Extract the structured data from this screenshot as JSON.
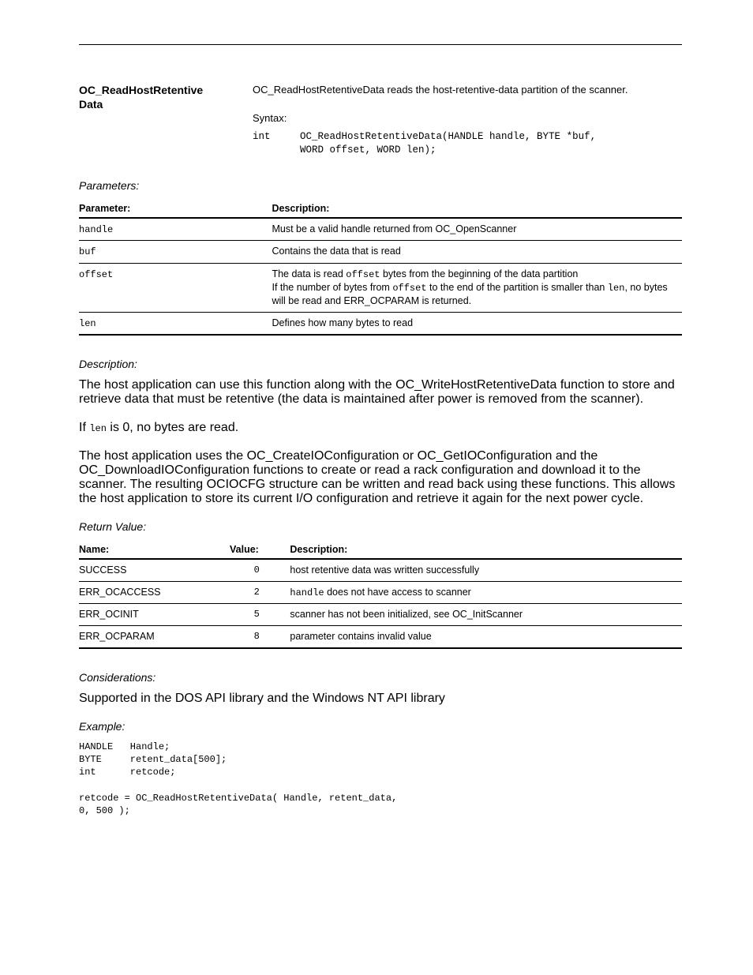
{
  "header": {
    "title": "OC_ReadHostRetentive\nData"
  },
  "intro": {
    "p1": "OC_ReadHostRetentiveData reads the host-retentive-data partition of the scanner.",
    "syntax_label": "Syntax:",
    "syntax_code": "int     OC_ReadHostRetentiveData(HANDLE handle, BYTE *buf,\n        WORD offset, WORD len);"
  },
  "parameters": {
    "heading": "Parameters:",
    "columns": {
      "param": "Parameter:",
      "desc": "Description:"
    },
    "rows": [
      {
        "param": "handle",
        "desc": "Must be a valid handle returned from OC_OpenScanner"
      },
      {
        "param": "buf",
        "desc": "Contains the data that is read"
      },
      {
        "param": "offset",
        "desc_parts": {
          "a": "The data is read ",
          "b": "offset",
          "c": " bytes from the beginning of the data partition\nIf the number of bytes from ",
          "d": "offset",
          "e": " to the end of the partition is smaller than ",
          "f": "len",
          "g": ", no bytes will be read and ERR_OCPARAM is returned."
        }
      },
      {
        "param": "len",
        "desc": "Defines how many bytes to read"
      }
    ]
  },
  "description": {
    "heading": "Description:",
    "p1": "The host application can use this function along with the OC_WriteHostRetentiveData function to store and retrieve data that must be retentive (the data is maintained after power is removed from the scanner).",
    "p2_prefix": "If ",
    "p2_code": "len",
    "p2_suffix": " is 0, no bytes are read.",
    "p3": "The host application uses the OC_CreateIOConfiguration or OC_GetIOConfiguration and the OC_DownloadIOConfiguration functions to create or read a rack configuration and download it to the scanner. The resulting OCIOCFG structure can be written and read back using these functions. This allows the host application to store its current I/O configuration and retrieve it again for the next power cycle."
  },
  "return_value": {
    "heading": "Return Value:",
    "columns": {
      "name": "Name:",
      "value": "Value:",
      "desc": "Description:"
    },
    "rows": [
      {
        "name": "SUCCESS",
        "value": "0",
        "desc": "host retentive data was written successfully"
      },
      {
        "name": "ERR_OCACCESS",
        "value": "2",
        "desc_code": "handle",
        "desc_suffix": " does not have access to scanner"
      },
      {
        "name": "ERR_OCINIT",
        "value": "5",
        "desc": "scanner has not been initialized, see OC_InitScanner"
      },
      {
        "name": "ERR_OCPARAM",
        "value": "8",
        "desc": "parameter contains invalid value"
      }
    ]
  },
  "considerations": {
    "heading": "Considerations:",
    "text": "Supported in the DOS API library and the Windows NT API library"
  },
  "example": {
    "heading": "Example:",
    "code": "HANDLE   Handle;\nBYTE     retent_data[500];\nint      retcode;\n\nretcode = OC_ReadHostRetentiveData( Handle, retent_data,\n0, 500 );"
  }
}
